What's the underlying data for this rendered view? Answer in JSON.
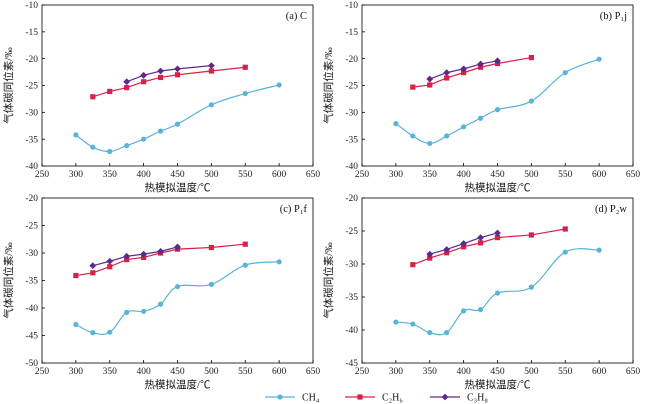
{
  "figure": {
    "legend": [
      {
        "label": "CH₄",
        "color": "#5bb3d8",
        "marker": "circle"
      },
      {
        "label": "C₂H₆",
        "color": "#d6214a",
        "marker": "square"
      },
      {
        "label": "C₃H₈",
        "color": "#5b2a8c",
        "marker": "diamond"
      }
    ]
  },
  "chart_data": [
    {
      "type": "line",
      "panel_label": "(a) C",
      "xlabel": "热模拟温度/℃",
      "ylabel": "气体碳同位素/‰",
      "xlim": [
        250,
        650
      ],
      "ylim": [
        -40,
        -10
      ],
      "xticks": [
        250,
        300,
        350,
        400,
        450,
        500,
        550,
        600,
        650
      ],
      "yticks": [
        -40,
        -35,
        -30,
        -25,
        -20,
        -15,
        -10
      ],
      "series": [
        {
          "name": "CH₄",
          "x": [
            300,
            325,
            350,
            375,
            400,
            425,
            450,
            500,
            550,
            600
          ],
          "y": [
            -34.2,
            -36.5,
            -37.3,
            -36.2,
            -35.0,
            -33.5,
            -32.2,
            -28.6,
            -26.5,
            -24.9
          ]
        },
        {
          "name": "C₂H₆",
          "x": [
            325,
            350,
            375,
            400,
            425,
            450,
            500,
            550
          ],
          "y": [
            -27.1,
            -26.1,
            -25.4,
            -24.3,
            -23.5,
            -23.0,
            -22.3,
            -21.6
          ]
        },
        {
          "name": "C₃H₈",
          "x": [
            375,
            400,
            425,
            450,
            500
          ],
          "y": [
            -24.3,
            -23.1,
            -22.3,
            -21.9,
            -21.3
          ]
        }
      ]
    },
    {
      "type": "line",
      "panel_label": "(b) P₁j",
      "xlabel": "热模拟温度/℃",
      "ylabel": "气体碳同位素/‰",
      "xlim": [
        250,
        650
      ],
      "ylim": [
        -40,
        -10
      ],
      "xticks": [
        250,
        300,
        350,
        400,
        450,
        500,
        550,
        600,
        650
      ],
      "yticks": [
        -40,
        -35,
        -30,
        -25,
        -20,
        -15,
        -10
      ],
      "series": [
        {
          "name": "CH₄",
          "x": [
            300,
            325,
            350,
            375,
            400,
            425,
            450,
            500,
            550,
            600
          ],
          "y": [
            -32.1,
            -34.4,
            -35.8,
            -34.4,
            -32.7,
            -31.1,
            -29.5,
            -27.9,
            -22.6,
            -20.1
          ]
        },
        {
          "name": "C₂H₆",
          "x": [
            325,
            350,
            375,
            400,
            425,
            450,
            500
          ],
          "y": [
            -25.3,
            -24.9,
            -23.6,
            -22.6,
            -21.6,
            -20.9,
            -19.8
          ]
        },
        {
          "name": "C₃H₈",
          "x": [
            350,
            375,
            400,
            425,
            450
          ],
          "y": [
            -23.8,
            -22.6,
            -21.9,
            -21.0,
            -20.4
          ]
        }
      ]
    },
    {
      "type": "line",
      "panel_label": "(c) P₁f",
      "xlabel": "热模拟温度/℃",
      "ylabel": "气体碳同位素/‰",
      "xlim": [
        250,
        650
      ],
      "ylim": [
        -50,
        -20
      ],
      "xticks": [
        250,
        300,
        350,
        400,
        450,
        500,
        550,
        600,
        650
      ],
      "yticks": [
        -50,
        -45,
        -40,
        -35,
        -30,
        -25,
        -20
      ],
      "series": [
        {
          "name": "CH₄",
          "x": [
            300,
            325,
            350,
            375,
            400,
            425,
            450,
            500,
            550,
            600
          ],
          "y": [
            -43.0,
            -44.5,
            -44.4,
            -40.8,
            -40.6,
            -39.3,
            -36.1,
            -35.7,
            -32.2,
            -31.6
          ]
        },
        {
          "name": "C₂H₆",
          "x": [
            300,
            325,
            350,
            375,
            400,
            425,
            450,
            500,
            550
          ],
          "y": [
            -34.1,
            -33.6,
            -32.5,
            -31.2,
            -30.8,
            -30.0,
            -29.3,
            -29.0,
            -28.4
          ]
        },
        {
          "name": "C₃H₈",
          "x": [
            325,
            350,
            375,
            400,
            425,
            450
          ],
          "y": [
            -32.3,
            -31.5,
            -30.6,
            -30.2,
            -29.7,
            -28.9
          ]
        }
      ]
    },
    {
      "type": "line",
      "panel_label": "(d) P₂w",
      "xlabel": "热模拟温度/℃",
      "ylabel": "气体碳同位素/‰",
      "xlim": [
        250,
        650
      ],
      "ylim": [
        -45,
        -20
      ],
      "xticks": [
        250,
        300,
        350,
        400,
        450,
        500,
        550,
        600,
        650
      ],
      "yticks": [
        -45,
        -40,
        -35,
        -30,
        -25,
        -20
      ],
      "series": [
        {
          "name": "CH₄",
          "x": [
            300,
            325,
            350,
            375,
            400,
            425,
            450,
            500,
            550,
            600
          ],
          "y": [
            -38.8,
            -39.1,
            -40.4,
            -40.4,
            -37.1,
            -36.9,
            -34.4,
            -33.5,
            -28.2,
            -27.9
          ]
        },
        {
          "name": "C₂H₆",
          "x": [
            325,
            350,
            375,
            400,
            425,
            450,
            500,
            550
          ],
          "y": [
            -30.1,
            -29.1,
            -28.3,
            -27.4,
            -26.8,
            -26.0,
            -25.6,
            -24.7
          ]
        },
        {
          "name": "C₃H₈",
          "x": [
            350,
            375,
            400,
            425,
            450
          ],
          "y": [
            -28.5,
            -27.8,
            -26.9,
            -26.0,
            -25.3
          ]
        }
      ]
    }
  ]
}
